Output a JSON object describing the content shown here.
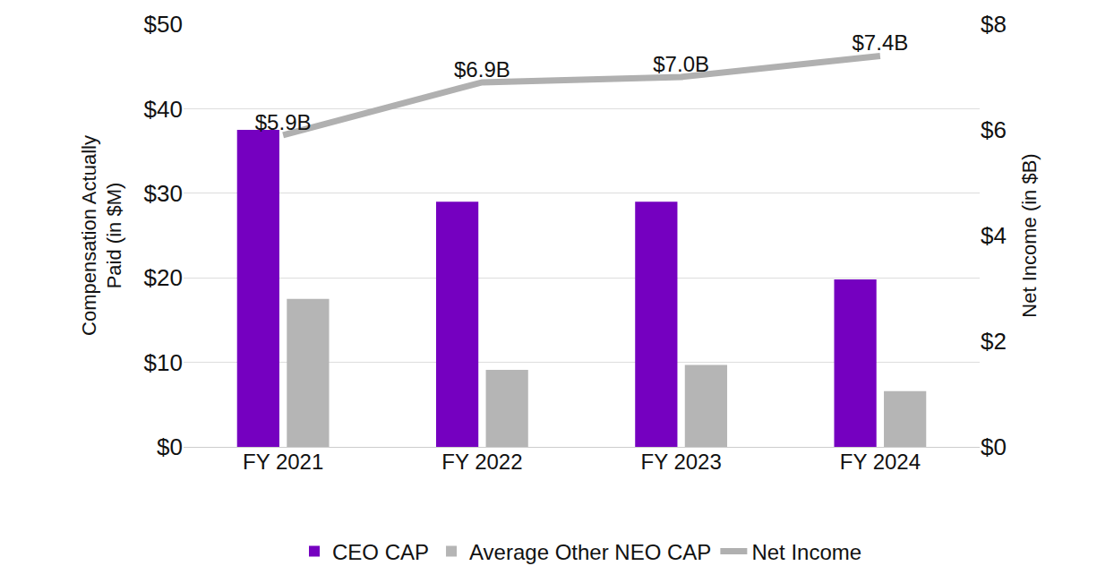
{
  "chart_data": {
    "type": "bar",
    "categories": [
      "FY 2021",
      "FY 2022",
      "FY 2023",
      "FY 2024"
    ],
    "y_label": [
      "Compensation Actually",
      "Paid (in $M)"
    ],
    "y2_label": "Net Income (in $B)",
    "ylim": [
      0,
      50
    ],
    "yticks": [
      {
        "value": 0,
        "label": "$0"
      },
      {
        "value": 10,
        "label": "$10"
      },
      {
        "value": 20,
        "label": "$20"
      },
      {
        "value": 30,
        "label": "$30"
      },
      {
        "value": 40,
        "label": "$40"
      },
      {
        "value": 50,
        "label": "$50"
      }
    ],
    "y2lim": [
      0,
      8
    ],
    "y2ticks": [
      {
        "value": 0,
        "label": "$0"
      },
      {
        "value": 2,
        "label": "$2"
      },
      {
        "value": 4,
        "label": "$4"
      },
      {
        "value": 6,
        "label": "$6"
      },
      {
        "value": 8,
        "label": "$8"
      }
    ],
    "grid": true,
    "legend": "bottom",
    "series": [
      {
        "name": "CEO CAP",
        "type": "bar",
        "color": "#7500c0",
        "values": [
          37.5,
          29.0,
          29.0,
          19.8
        ]
      },
      {
        "name": "Average Other NEO CAP",
        "type": "bar",
        "color": "#b5b5b5",
        "values": [
          17.5,
          9.1,
          9.7,
          6.6
        ]
      },
      {
        "name": "Net Income",
        "type": "line",
        "axis": "y2",
        "color": "#b0b0b0",
        "data_labels": true,
        "values": [
          5.9,
          6.9,
          7.0,
          7.4
        ],
        "value_labels": [
          "$5.9B",
          "$6.9B",
          "$7.0B",
          "$7.4B"
        ]
      }
    ]
  }
}
